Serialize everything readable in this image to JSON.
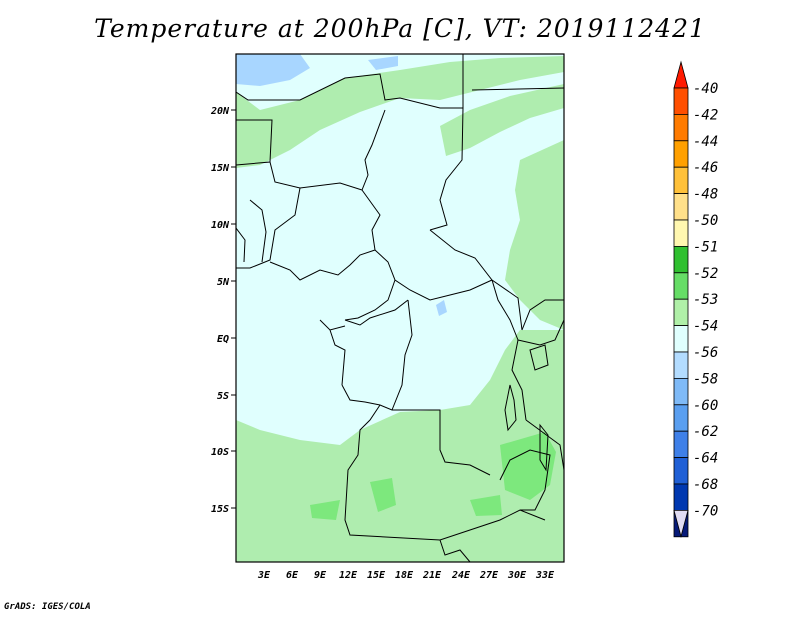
{
  "title": "Temperature at 200hPa [C], VT: 2019112421",
  "credit": "GrADS: IGES/COLA",
  "map": {
    "lat_labels": [
      "20N",
      "15N",
      "10N",
      "5N",
      "EQ",
      "5S",
      "10S",
      "15S"
    ],
    "lon_labels": [
      "3E",
      "6E",
      "9E",
      "12E",
      "15E",
      "18E",
      "21E",
      "24E",
      "27E",
      "30E",
      "33E"
    ],
    "field_colors": {
      "background": "#e0fffe",
      "minus_53": "#afedaf",
      "minus_52": "#7de87d",
      "minus_56": "#a8d6ff"
    }
  },
  "colorbar": {
    "labels": [
      "-40",
      "-42",
      "-44",
      "-46",
      "-48",
      "-50",
      "-51",
      "-52",
      "-53",
      "-54",
      "-56",
      "-58",
      "-60",
      "-62",
      "-64",
      "-68",
      "-70"
    ],
    "colors": [
      "#ff1a00",
      "#ff4f00",
      "#ff7b00",
      "#ffa000",
      "#ffc13a",
      "#ffe08a",
      "#fff7b0",
      "#30c030",
      "#66dd66",
      "#b0f0a8",
      "#e0fffe",
      "#b3dcff",
      "#7fbaf7",
      "#5a9ff0",
      "#3f80e8",
      "#2060d6",
      "#0038b0",
      "#061a78",
      "#e0dcf2"
    ]
  }
}
